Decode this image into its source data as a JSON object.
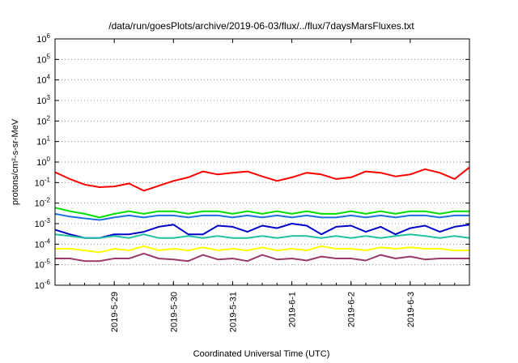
{
  "chart_data": {
    "type": "line",
    "title": "/data/run/goesPlots/archive/2019-06-03/flux/../flux/7daysMarsFluxes.txt",
    "xlabel": "Coordinated Universal Time (UTC)",
    "ylabel": "protons/cm²-s-sr-MeV",
    "y_scale": "log",
    "ylim": [
      1e-06,
      1000000.0
    ],
    "y_ticks": [
      {
        "value": 1e-06,
        "base": "10",
        "exp": "-6"
      },
      {
        "value": 1e-05,
        "base": "10",
        "exp": "-5"
      },
      {
        "value": 0.0001,
        "base": "10",
        "exp": "-4"
      },
      {
        "value": 0.001,
        "base": "10",
        "exp": "-3"
      },
      {
        "value": 0.01,
        "base": "10",
        "exp": "-2"
      },
      {
        "value": 0.1,
        "base": "10",
        "exp": "-1"
      },
      {
        "value": 1,
        "base": "10",
        "exp": "0"
      },
      {
        "value": 10,
        "base": "10",
        "exp": "1"
      },
      {
        "value": 100,
        "base": "10",
        "exp": "2"
      },
      {
        "value": 1000,
        "base": "10",
        "exp": "3"
      },
      {
        "value": 10000,
        "base": "10",
        "exp": "4"
      },
      {
        "value": 100000,
        "base": "10",
        "exp": "5"
      },
      {
        "value": 1000000,
        "base": "10",
        "exp": "6"
      }
    ],
    "xlim": [
      "2019-05-28 00:00",
      "2019-06-04 00:00"
    ],
    "x_ticks": [
      "2019-5-29",
      "2019-5-30",
      "2019-5-31",
      "2019-6-1",
      "2019-6-2",
      "2019-6-3"
    ],
    "x_tick_dates": [
      "2019-05-29 00:00",
      "2019-05-30 00:00",
      "2019-05-31 00:00",
      "2019-06-01 00:00",
      "2019-06-02 00:00",
      "2019-06-03 00:00"
    ],
    "grid": "horizontal dotted",
    "series": [
      {
        "color": "#ff0000",
        "x": [
          "2019-05-28 00:00",
          "2019-05-28 06:00",
          "2019-05-28 12:00",
          "2019-05-28 18:00",
          "2019-05-29 00:00",
          "2019-05-29 06:00",
          "2019-05-29 12:00",
          "2019-05-29 18:00",
          "2019-05-30 00:00",
          "2019-05-30 06:00",
          "2019-05-30 12:00",
          "2019-05-30 18:00",
          "2019-05-31 00:00",
          "2019-05-31 06:00",
          "2019-05-31 12:00",
          "2019-05-31 18:00",
          "2019-06-01 00:00",
          "2019-06-01 06:00",
          "2019-06-01 12:00",
          "2019-06-01 18:00",
          "2019-06-02 00:00",
          "2019-06-02 06:00",
          "2019-06-02 12:00",
          "2019-06-02 18:00",
          "2019-06-03 00:00",
          "2019-06-03 06:00",
          "2019-06-03 12:00",
          "2019-06-03 18:00",
          "2019-06-04 00:00"
        ],
        "y": [
          0.32,
          0.15,
          0.08,
          0.06,
          0.065,
          0.09,
          0.04,
          0.07,
          0.12,
          0.18,
          0.35,
          0.25,
          0.3,
          0.35,
          0.2,
          0.12,
          0.18,
          0.3,
          0.25,
          0.15,
          0.18,
          0.35,
          0.3,
          0.2,
          0.25,
          0.45,
          0.3,
          0.15,
          0.55
        ]
      },
      {
        "color": "#00e000",
        "x": [
          "2019-05-28 00:00",
          "2019-05-28 06:00",
          "2019-05-28 12:00",
          "2019-05-28 18:00",
          "2019-05-29 00:00",
          "2019-05-29 06:00",
          "2019-05-29 12:00",
          "2019-05-29 18:00",
          "2019-05-30 00:00",
          "2019-05-30 06:00",
          "2019-05-30 12:00",
          "2019-05-30 18:00",
          "2019-05-31 00:00",
          "2019-05-31 06:00",
          "2019-05-31 12:00",
          "2019-05-31 18:00",
          "2019-06-01 00:00",
          "2019-06-01 06:00",
          "2019-06-01 12:00",
          "2019-06-01 18:00",
          "2019-06-02 00:00",
          "2019-06-02 06:00",
          "2019-06-02 12:00",
          "2019-06-02 18:00",
          "2019-06-03 00:00",
          "2019-06-03 06:00",
          "2019-06-03 12:00",
          "2019-06-03 18:00",
          "2019-06-04 00:00"
        ],
        "y": [
          0.006,
          0.004,
          0.003,
          0.002,
          0.003,
          0.004,
          0.003,
          0.004,
          0.004,
          0.003,
          0.004,
          0.004,
          0.003,
          0.004,
          0.003,
          0.004,
          0.003,
          0.004,
          0.003,
          0.003,
          0.004,
          0.003,
          0.004,
          0.003,
          0.004,
          0.004,
          0.003,
          0.004,
          0.004
        ]
      },
      {
        "color": "#1e6fe0",
        "x": [
          "2019-05-28 00:00",
          "2019-05-28 06:00",
          "2019-05-28 12:00",
          "2019-05-28 18:00",
          "2019-05-29 00:00",
          "2019-05-29 06:00",
          "2019-05-29 12:00",
          "2019-05-29 18:00",
          "2019-05-30 00:00",
          "2019-05-30 06:00",
          "2019-05-30 12:00",
          "2019-05-30 18:00",
          "2019-05-31 00:00",
          "2019-05-31 06:00",
          "2019-05-31 12:00",
          "2019-05-31 18:00",
          "2019-06-01 00:00",
          "2019-06-01 06:00",
          "2019-06-01 12:00",
          "2019-06-01 18:00",
          "2019-06-02 00:00",
          "2019-06-02 06:00",
          "2019-06-02 12:00",
          "2019-06-02 18:00",
          "2019-06-03 00:00",
          "2019-06-03 06:00",
          "2019-06-03 12:00",
          "2019-06-03 18:00",
          "2019-06-04 00:00"
        ],
        "y": [
          0.003,
          0.0022,
          0.0018,
          0.0015,
          0.002,
          0.0025,
          0.002,
          0.0025,
          0.0025,
          0.002,
          0.0025,
          0.0025,
          0.002,
          0.0025,
          0.002,
          0.0025,
          0.002,
          0.0025,
          0.002,
          0.002,
          0.0025,
          0.002,
          0.0025,
          0.002,
          0.0025,
          0.0025,
          0.002,
          0.0025,
          0.0025
        ]
      },
      {
        "color": "#0000c8",
        "x": [
          "2019-05-28 00:00",
          "2019-05-28 06:00",
          "2019-05-28 12:00",
          "2019-05-28 18:00",
          "2019-05-29 00:00",
          "2019-05-29 06:00",
          "2019-05-29 12:00",
          "2019-05-29 18:00",
          "2019-05-30 00:00",
          "2019-05-30 06:00",
          "2019-05-30 12:00",
          "2019-05-30 18:00",
          "2019-05-31 00:00",
          "2019-05-31 06:00",
          "2019-05-31 12:00",
          "2019-05-31 18:00",
          "2019-06-01 00:00",
          "2019-06-01 06:00",
          "2019-06-01 12:00",
          "2019-06-01 18:00",
          "2019-06-02 00:00",
          "2019-06-02 06:00",
          "2019-06-02 12:00",
          "2019-06-02 18:00",
          "2019-06-03 00:00",
          "2019-06-03 06:00",
          "2019-06-03 12:00",
          "2019-06-03 18:00",
          "2019-06-04 00:00"
        ],
        "y": [
          0.0005,
          0.0003,
          0.0002,
          0.0002,
          0.0003,
          0.0003,
          0.0004,
          0.0007,
          0.0009,
          0.0003,
          0.0003,
          0.0008,
          0.0007,
          0.0004,
          0.0008,
          0.0006,
          0.001,
          0.0008,
          0.0003,
          0.0007,
          0.0008,
          0.0004,
          0.0007,
          0.0003,
          0.0006,
          0.0008,
          0.0004,
          0.0007,
          0.0009
        ]
      },
      {
        "color": "#20c0a0",
        "x": [
          "2019-05-28 00:00",
          "2019-05-28 06:00",
          "2019-05-28 12:00",
          "2019-05-28 18:00",
          "2019-05-29 00:00",
          "2019-05-29 06:00",
          "2019-05-29 12:00",
          "2019-05-29 18:00",
          "2019-05-30 00:00",
          "2019-05-30 06:00",
          "2019-05-30 12:00",
          "2019-05-30 18:00",
          "2019-05-31 00:00",
          "2019-05-31 06:00",
          "2019-05-31 12:00",
          "2019-05-31 18:00",
          "2019-06-01 00:00",
          "2019-06-01 06:00",
          "2019-06-01 12:00",
          "2019-06-01 18:00",
          "2019-06-02 00:00",
          "2019-06-02 06:00",
          "2019-06-02 12:00",
          "2019-06-02 18:00",
          "2019-06-03 00:00",
          "2019-06-03 06:00",
          "2019-06-03 12:00",
          "2019-06-03 18:00",
          "2019-06-04 00:00"
        ],
        "y": [
          0.0003,
          0.00025,
          0.0002,
          0.0002,
          0.00025,
          0.0002,
          0.0003,
          0.0002,
          0.0002,
          0.00025,
          0.0002,
          0.00025,
          0.0002,
          0.0002,
          0.00025,
          0.0002,
          0.00025,
          0.00025,
          0.0002,
          0.00025,
          0.0002,
          0.00025,
          0.0002,
          0.00025,
          0.0003,
          0.00025,
          0.0002,
          0.00025,
          0.0002
        ]
      },
      {
        "color": "#ffff00",
        "x": [
          "2019-05-28 00:00",
          "2019-05-28 06:00",
          "2019-05-28 12:00",
          "2019-05-28 18:00",
          "2019-05-29 00:00",
          "2019-05-29 06:00",
          "2019-05-29 12:00",
          "2019-05-29 18:00",
          "2019-05-30 00:00",
          "2019-05-30 06:00",
          "2019-05-30 12:00",
          "2019-05-30 18:00",
          "2019-05-31 00:00",
          "2019-05-31 06:00",
          "2019-05-31 12:00",
          "2019-05-31 18:00",
          "2019-06-01 00:00",
          "2019-06-01 06:00",
          "2019-06-01 12:00",
          "2019-06-01 18:00",
          "2019-06-02 00:00",
          "2019-06-02 06:00",
          "2019-06-02 12:00",
          "2019-06-02 18:00",
          "2019-06-03 00:00",
          "2019-06-03 06:00",
          "2019-06-03 12:00",
          "2019-06-03 18:00",
          "2019-06-04 00:00"
        ],
        "y": [
          6e-05,
          6e-05,
          5e-05,
          4e-05,
          6e-05,
          5e-05,
          8e-05,
          5e-05,
          6e-05,
          5e-05,
          7e-05,
          5e-05,
          6e-05,
          5e-05,
          7e-05,
          5e-05,
          6e-05,
          5e-05,
          8e-05,
          6e-05,
          6e-05,
          5e-05,
          7e-05,
          6e-05,
          7e-05,
          6e-05,
          6e-05,
          5e-05,
          5e-05
        ]
      },
      {
        "color": "#9a3a6a",
        "x": [
          "2019-05-28 00:00",
          "2019-05-28 06:00",
          "2019-05-28 12:00",
          "2019-05-28 18:00",
          "2019-05-29 00:00",
          "2019-05-29 06:00",
          "2019-05-29 12:00",
          "2019-05-29 18:00",
          "2019-05-30 00:00",
          "2019-05-30 06:00",
          "2019-05-30 12:00",
          "2019-05-30 18:00",
          "2019-05-31 00:00",
          "2019-05-31 06:00",
          "2019-05-31 12:00",
          "2019-05-31 18:00",
          "2019-06-01 00:00",
          "2019-06-01 06:00",
          "2019-06-01 12:00",
          "2019-06-01 18:00",
          "2019-06-02 00:00",
          "2019-06-02 06:00",
          "2019-06-02 12:00",
          "2019-06-02 18:00",
          "2019-06-03 00:00",
          "2019-06-03 06:00",
          "2019-06-03 12:00",
          "2019-06-03 18:00",
          "2019-06-04 00:00"
        ],
        "y": [
          2e-05,
          2e-05,
          1.5e-05,
          1.5e-05,
          2e-05,
          2e-05,
          3.5e-05,
          2e-05,
          1.8e-05,
          1.5e-05,
          3e-05,
          1.8e-05,
          2e-05,
          1.5e-05,
          3e-05,
          1.8e-05,
          2e-05,
          1.6e-05,
          2.5e-05,
          2e-05,
          2e-05,
          1.6e-05,
          3e-05,
          2e-05,
          2.5e-05,
          1.8e-05,
          2e-05,
          2e-05,
          2e-05
        ]
      }
    ]
  }
}
